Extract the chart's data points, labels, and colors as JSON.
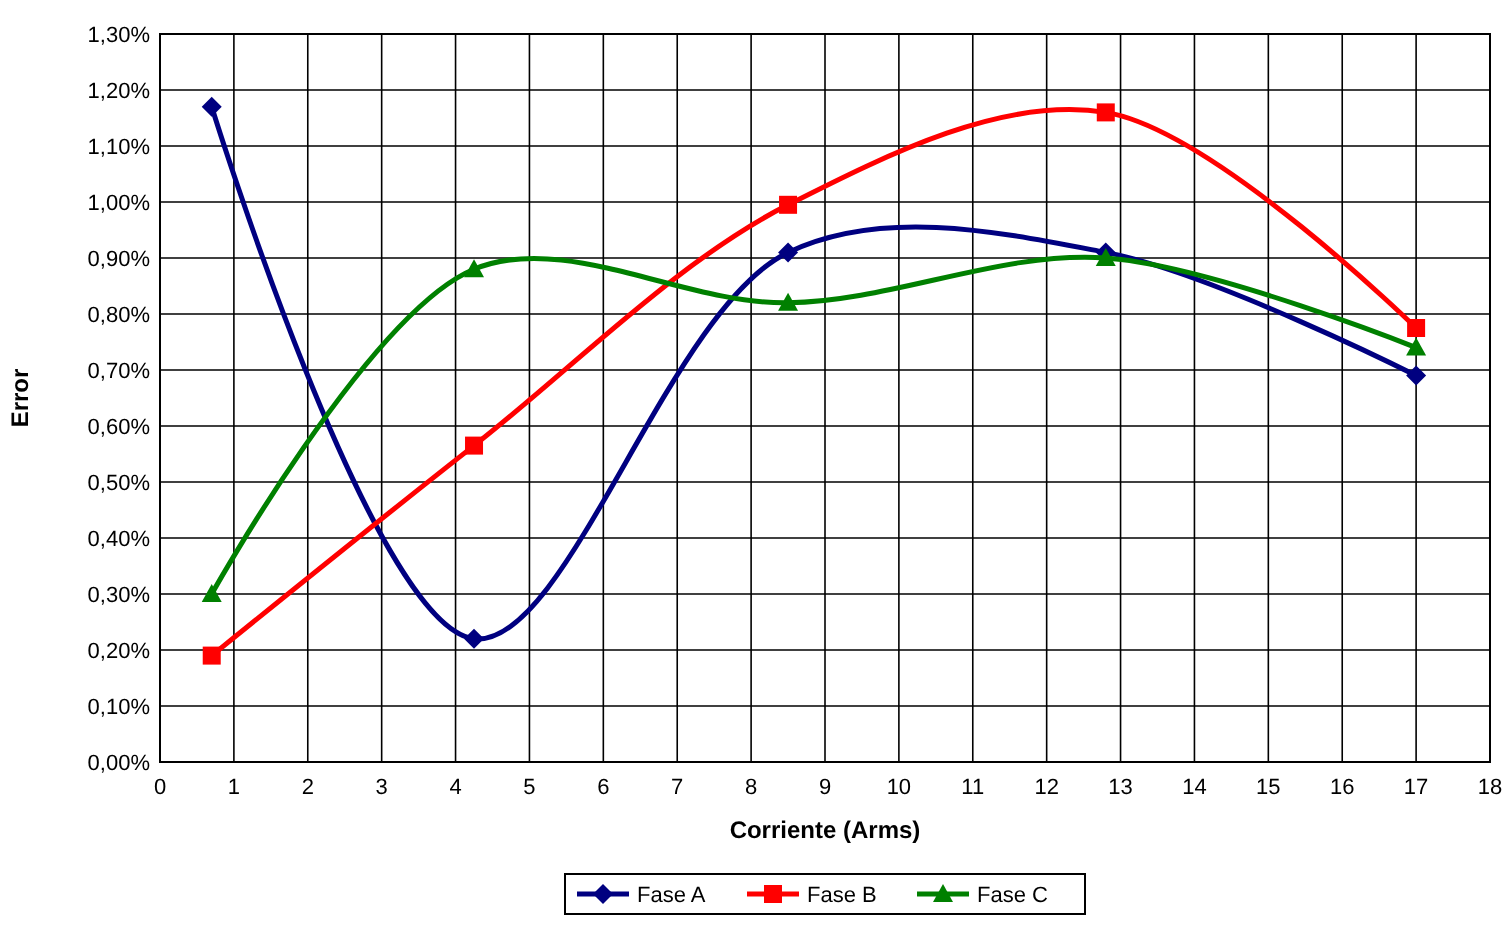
{
  "chart_data": {
    "type": "line",
    "xlabel": "Corriente (Arms)",
    "ylabel": "Error",
    "xlim": [
      0,
      18
    ],
    "xticks": [
      0,
      1,
      2,
      3,
      4,
      5,
      6,
      7,
      8,
      9,
      10,
      11,
      12,
      13,
      14,
      15,
      16,
      17,
      18
    ],
    "ylim": [
      0,
      1.3
    ],
    "yticks": [
      {
        "value": 0,
        "label": "0,00%"
      },
      {
        "value": 0.1,
        "label": "0,10%"
      },
      {
        "value": 0.2,
        "label": "0,20%"
      },
      {
        "value": 0.3,
        "label": "0,30%"
      },
      {
        "value": 0.4,
        "label": "0,40%"
      },
      {
        "value": 0.5,
        "label": "0,50%"
      },
      {
        "value": 0.6,
        "label": "0,60%"
      },
      {
        "value": 0.7,
        "label": "0,70%"
      },
      {
        "value": 0.8,
        "label": "0,80%"
      },
      {
        "value": 0.9,
        "label": "0,90%"
      },
      {
        "value": 1.0,
        "label": "1,00%"
      },
      {
        "value": 1.1,
        "label": "1,10%"
      },
      {
        "value": 1.2,
        "label": "1,20%"
      },
      {
        "value": 1.3,
        "label": "1,30%"
      }
    ],
    "x": [
      0.7,
      4.25,
      8.5,
      12.8,
      17.0
    ],
    "grid": true,
    "legend": "bottom",
    "line_style": "solid",
    "series": [
      {
        "name": "Fase A",
        "color": "#000080",
        "marker": "diamond",
        "values": [
          1.17,
          0.22,
          0.91,
          0.91,
          0.69
        ]
      },
      {
        "name": "Fase B",
        "color": "#ff0000",
        "marker": "square",
        "values": [
          0.19,
          0.565,
          0.995,
          1.16,
          0.775
        ]
      },
      {
        "name": "Fase C",
        "color": "#008000",
        "marker": "triangle",
        "values": [
          0.3,
          0.88,
          0.82,
          0.9,
          0.74
        ]
      }
    ]
  }
}
